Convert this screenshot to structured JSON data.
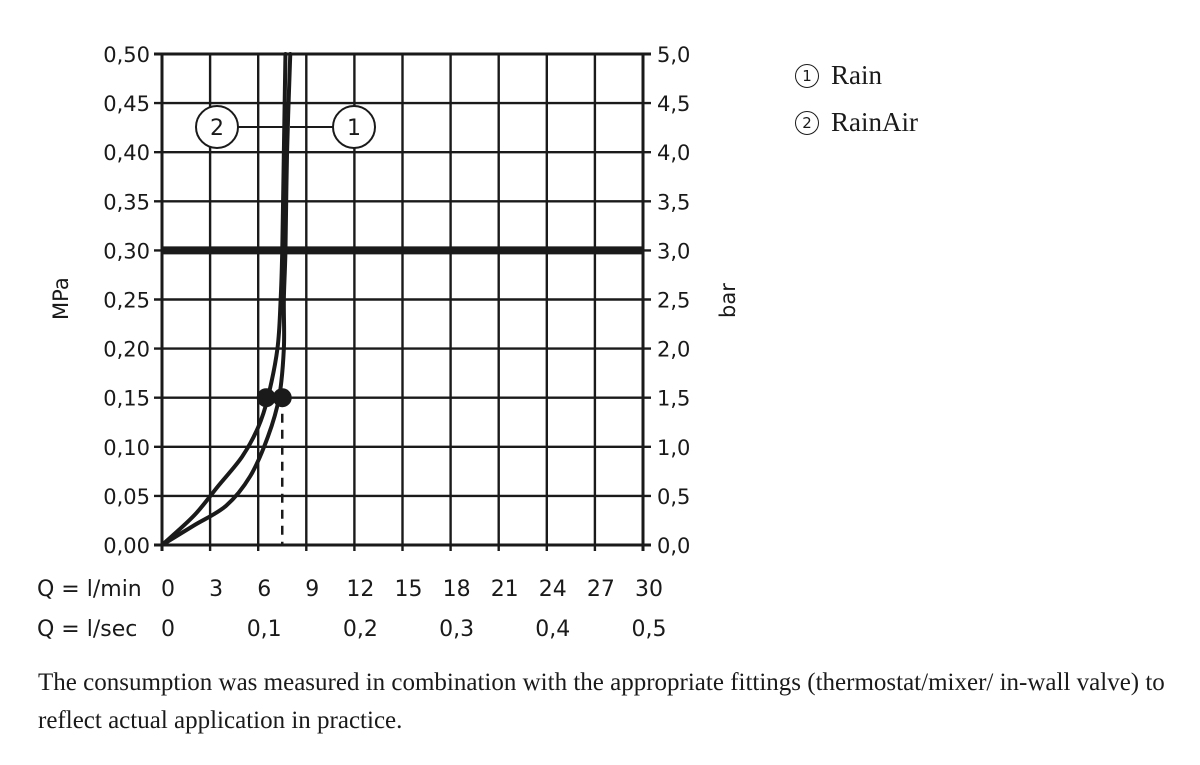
{
  "chart_data": {
    "type": "line",
    "title": "",
    "xlabel": "Q = l/min",
    "xlabel_secondary": "Q = l/sec",
    "ylabel": "MPa",
    "ylabel_right": "bar",
    "xlim": [
      0,
      30
    ],
    "ylim": [
      0,
      0.5
    ],
    "grid": true,
    "x_ticks": [
      "0",
      "3",
      "6",
      "9",
      "12",
      "15",
      "18",
      "21",
      "24",
      "27",
      "30"
    ],
    "x_ticks_secondary": [
      "0",
      "0,1",
      "0,2",
      "0,3",
      "0,4",
      "0,5"
    ],
    "y_ticks_left": [
      "0,00",
      "0,05",
      "0,10",
      "0,15",
      "0,20",
      "0,25",
      "0,30",
      "0,35",
      "0,40",
      "0,45",
      "0,50"
    ],
    "y_ticks_right": [
      "0,0",
      "0,5",
      "1,0",
      "1,5",
      "2,0",
      "2,5",
      "3,0",
      "3,5",
      "4,0",
      "4,5",
      "5,0"
    ],
    "reference_line": {
      "y": 0.3,
      "label": "0,30 MPa / 3,0 bar"
    },
    "series": [
      {
        "id": "1",
        "name": "Rain",
        "x": [
          0,
          2,
          4,
          5.5,
          6.6,
          7.3,
          7.6,
          7.6,
          7.7,
          7.8,
          8.0
        ],
        "y": [
          0,
          0.02,
          0.04,
          0.07,
          0.11,
          0.15,
          0.2,
          0.25,
          0.3,
          0.4,
          0.5
        ],
        "marker": {
          "x": 7.5,
          "y": 0.15
        }
      },
      {
        "id": "2",
        "name": "RainAir",
        "x": [
          0,
          2,
          3.5,
          5,
          6.0,
          6.6,
          7.2,
          7.4,
          7.5,
          7.6,
          7.7
        ],
        "y": [
          0,
          0.03,
          0.06,
          0.09,
          0.12,
          0.15,
          0.2,
          0.25,
          0.3,
          0.4,
          0.5
        ],
        "marker": {
          "x": 6.5,
          "y": 0.15
        }
      }
    ],
    "dashed_marker_line": {
      "x": 7.5,
      "from_y": 0,
      "to_y": 0.15
    },
    "callouts": [
      {
        "label": "2",
        "series": "RainAir"
      },
      {
        "label": "1",
        "series": "Rain"
      }
    ],
    "legend": [
      {
        "num": "1",
        "label": "Rain"
      },
      {
        "num": "2",
        "label": "RainAir"
      }
    ],
    "legend_position": "top-right"
  },
  "labels": {
    "y_left_unit": "MPa",
    "y_right_unit": "bar",
    "x_row1_prefix": "Q = l/min",
    "x_row2_prefix": "Q = l/sec",
    "callout_2": "2",
    "callout_1": "1"
  },
  "legend": {
    "items": [
      {
        "num": "1",
        "label": "Rain"
      },
      {
        "num": "2",
        "label": "RainAir"
      }
    ]
  },
  "note": {
    "text": "The consumption was measured in combination with the appropriate fittings (thermostat/mixer/ in-wall valve) to reflect actual application in practice."
  }
}
